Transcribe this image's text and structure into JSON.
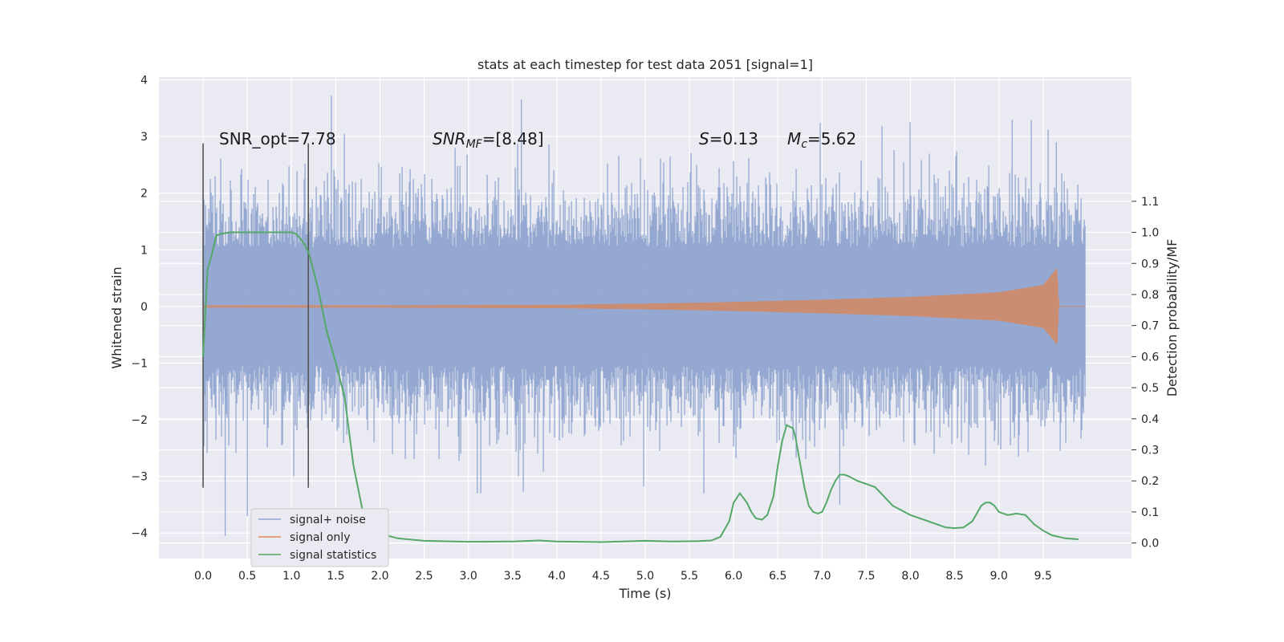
{
  "chart_data": {
    "type": "line",
    "title": "stats at each timestep for test data 2051 [signal=1]",
    "xlabel": "Time (s)",
    "ylabel": "Whitened strain",
    "ylabel_right": "Detection probability/MF",
    "xlim": [
      -0.5,
      10.5
    ],
    "ylim": [
      -4.45,
      4.05
    ],
    "ylim_right": [
      -0.05,
      1.5
    ],
    "x_ticks": [
      "0.0",
      "0.5",
      "1.0",
      "1.5",
      "2.0",
      "2.5",
      "3.0",
      "3.5",
      "4.0",
      "4.5",
      "5.0",
      "5.5",
      "6.0",
      "6.5",
      "7.0",
      "7.5",
      "8.0",
      "8.5",
      "9.0",
      "9.5"
    ],
    "y_ticks": [
      "4",
      "3",
      "2",
      "1",
      "0",
      "−1",
      "−2",
      "−3",
      "−4"
    ],
    "y_right_ticks": [
      "1.1",
      "1.0",
      "0.9",
      "0.8",
      "0.7",
      "0.6",
      "0.5",
      "0.4",
      "0.3",
      "0.2",
      "0.1",
      "0.0"
    ],
    "grid": true,
    "legend_position": "lower-left",
    "colors": {
      "background": "#eaeaf2",
      "grid": "#ffffff",
      "noise": "#8fa4cf",
      "signal": "#dd8452",
      "statistics": "#55a868",
      "marker": "#555555"
    },
    "annotations": [
      {
        "text": "SNR_opt=7.78"
      },
      {
        "main": "SNR",
        "sub": "MF",
        "rest": "=[8.48]"
      },
      {
        "main": "S",
        "rest": "=0.13"
      },
      {
        "main": "M",
        "sub": "c",
        "rest": "=5.62"
      }
    ],
    "vertical_markers": [
      0.0,
      1.19
    ],
    "series": [
      {
        "name": "signal+ noise",
        "axis": "left",
        "x_range": [
          0.0,
          9.98
        ],
        "typical_amplitude": 1.1,
        "extremes": [
          {
            "x": 0.25,
            "y": -4.05
          },
          {
            "x": 0.5,
            "y": -3.7
          },
          {
            "x": 1.45,
            "y": 3.72
          },
          {
            "x": 3.6,
            "y": 3.65
          },
          {
            "x": 3.1,
            "y": -3.3
          },
          {
            "x": 7.2,
            "y": -3.5
          },
          {
            "x": 9.15,
            "y": 3.3
          },
          {
            "x": 9.65,
            "y": 2.9
          }
        ]
      },
      {
        "name": "signal only",
        "axis": "left",
        "envelope": [
          [
            0.0,
            0.02
          ],
          [
            2.0,
            0.02
          ],
          [
            4.0,
            0.03
          ],
          [
            5.0,
            0.05
          ],
          [
            6.0,
            0.08
          ],
          [
            7.0,
            0.12
          ],
          [
            8.0,
            0.17
          ],
          [
            9.0,
            0.25
          ],
          [
            9.5,
            0.38
          ],
          [
            9.66,
            0.68
          ],
          [
            9.68,
            0.0
          ],
          [
            9.98,
            0.0
          ]
        ]
      },
      {
        "name": "signal statistics",
        "axis": "right",
        "x": [
          0.0,
          0.05,
          0.1,
          0.15,
          0.2,
          0.3,
          0.5,
          0.8,
          1.0,
          1.05,
          1.1,
          1.15,
          1.2,
          1.3,
          1.4,
          1.5,
          1.6,
          1.7,
          1.8,
          1.9,
          2.0,
          2.2,
          2.5,
          3.0,
          3.5,
          3.8,
          4.0,
          4.5,
          5.0,
          5.3,
          5.6,
          5.75,
          5.85,
          5.95,
          6.0,
          6.07,
          6.15,
          6.2,
          6.25,
          6.32,
          6.38,
          6.45,
          6.5,
          6.55,
          6.6,
          6.63,
          6.67,
          6.7,
          6.75,
          6.8,
          6.85,
          6.9,
          6.95,
          7.0,
          7.05,
          7.1,
          7.15,
          7.2,
          7.25,
          7.3,
          7.4,
          7.5,
          7.6,
          7.7,
          7.8,
          8.0,
          8.2,
          8.4,
          8.5,
          8.6,
          8.7,
          8.8,
          8.85,
          8.9,
          8.95,
          9.0,
          9.1,
          9.2,
          9.3,
          9.4,
          9.5,
          9.6,
          9.75,
          9.9
        ],
        "values": [
          0.6,
          0.88,
          0.93,
          0.99,
          0.995,
          1.0,
          1.0,
          1.0,
          1.0,
          0.995,
          0.98,
          0.96,
          0.93,
          0.82,
          0.68,
          0.58,
          0.47,
          0.25,
          0.11,
          0.05,
          0.03,
          0.015,
          0.007,
          0.004,
          0.005,
          0.008,
          0.005,
          0.003,
          0.007,
          0.005,
          0.006,
          0.008,
          0.02,
          0.07,
          0.13,
          0.16,
          0.13,
          0.1,
          0.08,
          0.075,
          0.09,
          0.15,
          0.25,
          0.33,
          0.38,
          0.375,
          0.37,
          0.34,
          0.26,
          0.18,
          0.12,
          0.1,
          0.095,
          0.1,
          0.13,
          0.17,
          0.2,
          0.22,
          0.22,
          0.215,
          0.2,
          0.19,
          0.18,
          0.15,
          0.12,
          0.09,
          0.07,
          0.05,
          0.048,
          0.05,
          0.07,
          0.12,
          0.13,
          0.13,
          0.12,
          0.1,
          0.09,
          0.095,
          0.09,
          0.06,
          0.04,
          0.025,
          0.015,
          0.012
        ]
      }
    ]
  }
}
